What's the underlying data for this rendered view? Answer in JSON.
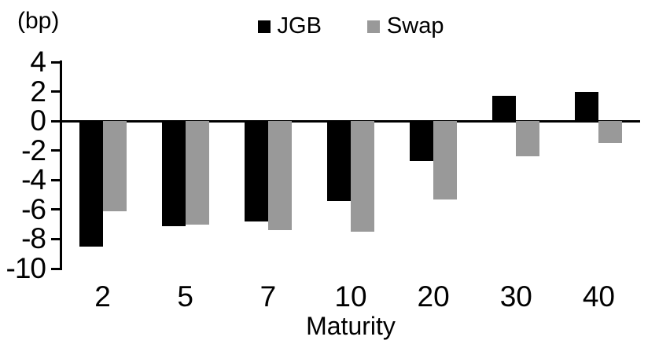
{
  "chart_data": {
    "type": "bar",
    "title": "",
    "unit_label": "(bp)",
    "xlabel": "Maturity",
    "ylabel": "",
    "categories": [
      "2",
      "5",
      "7",
      "10",
      "20",
      "30",
      "40"
    ],
    "series": [
      {
        "name": "JGB",
        "color": "#000000",
        "values": [
          -8.5,
          -7.1,
          -6.8,
          -5.4,
          -2.7,
          1.7,
          2.0
        ]
      },
      {
        "name": "Swap",
        "color": "#999999",
        "values": [
          -6.1,
          -7.0,
          -7.4,
          -7.5,
          -5.3,
          -2.4,
          -1.5
        ]
      }
    ],
    "ylim": [
      -10,
      4
    ],
    "yticks": [
      4,
      2,
      0,
      -2,
      -4,
      -6,
      -8,
      -10
    ],
    "grid": false,
    "legend_position": "top-center",
    "axis_color": "#000000",
    "background": "#ffffff"
  }
}
